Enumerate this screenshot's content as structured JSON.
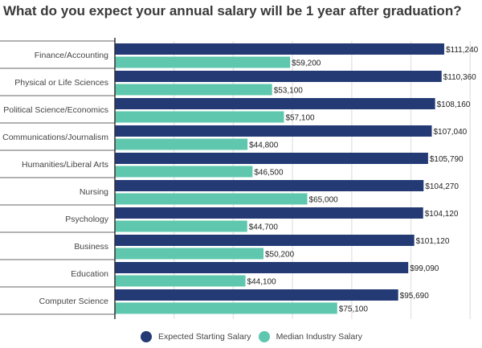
{
  "chart_data": {
    "type": "bar",
    "orientation": "horizontal",
    "title": "What do you expect your annual salary will be 1 year after graduation?",
    "categories": [
      "Finance/Accounting",
      "Physical or Life Sciences",
      "Political Science/Economics",
      "Communications/Journalism",
      "Humanities/Liberal Arts",
      "Nursing",
      "Psychology",
      "Business",
      "Education",
      "Computer Science"
    ],
    "series": [
      {
        "name": "Expected Starting Salary",
        "color": "#233a74",
        "values": [
          111240,
          110360,
          108160,
          107040,
          105790,
          104270,
          104120,
          101120,
          99090,
          95690
        ],
        "labels": [
          "$111,240",
          "$110,360",
          "$108,160",
          "$107,040",
          "$105,790",
          "$104,270",
          "$104,120",
          "$101,120",
          "$99,090",
          "$95,690"
        ]
      },
      {
        "name": "Median Industry Salary",
        "color": "#5fc7ae",
        "values": [
          59200,
          53100,
          57100,
          44800,
          46500,
          65000,
          44700,
          50200,
          44100,
          75100
        ],
        "labels": [
          "$59,200",
          "$53,100",
          "$57,100",
          "$44,800",
          "$46,500",
          "$65,000",
          "$44,700",
          "$50,200",
          "$44,100",
          "$75,100"
        ]
      }
    ],
    "xlim": [
      0,
      124000
    ],
    "x_gridlines": [
      0,
      20000,
      40000,
      60000,
      80000,
      100000,
      120000
    ],
    "grid": true,
    "legend_position": "bottom"
  }
}
